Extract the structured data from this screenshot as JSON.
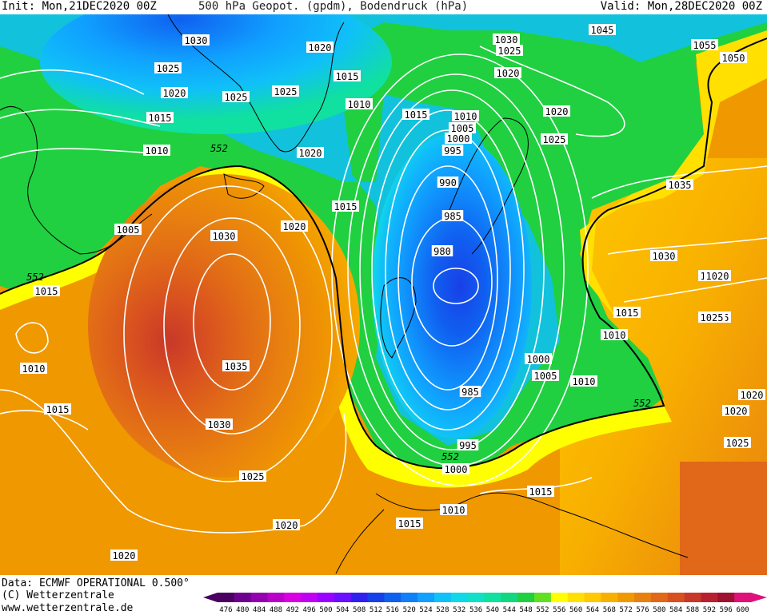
{
  "header": {
    "init": "Init: Mon,21DEC2020 00Z",
    "title": "500 hPa Geopot. (gpdm), Bodendruck (hPa)",
    "valid": "Valid: Mon,28DEC2020 00Z"
  },
  "footer": {
    "data": "Data: ECMWF OPERATIONAL 0.500°",
    "copyright": "(C) Wetterzentrale",
    "website": "www.wetterzentrale.de"
  },
  "scale": {
    "values": [
      "476",
      "480",
      "484",
      "488",
      "492",
      "496",
      "500",
      "504",
      "508",
      "512",
      "516",
      "520",
      "524",
      "528",
      "532",
      "536",
      "540",
      "544",
      "548",
      "552",
      "556",
      "560",
      "564",
      "568",
      "572",
      "576",
      "580",
      "584",
      "588",
      "592",
      "596",
      "600"
    ],
    "colors": [
      "#4a0060",
      "#6e0090",
      "#9400b0",
      "#b800c8",
      "#d800e0",
      "#c000f0",
      "#9a00ff",
      "#6a10ff",
      "#3020f0",
      "#1840e8",
      "#1060f0",
      "#1080f8",
      "#10a0ff",
      "#10c0f8",
      "#10d8e8",
      "#10e0c8",
      "#10e0a0",
      "#10d880",
      "#20d040",
      "#60e020",
      "#ffff00",
      "#ffe000",
      "#ffc800",
      "#f8b000",
      "#f09800",
      "#e88010",
      "#e06818",
      "#d85020",
      "#c83828",
      "#b82030",
      "#a01030",
      "#e0107a"
    ]
  },
  "pressure_labels": [
    {
      "text": "1030"
    },
    {
      "text": "1025"
    },
    {
      "text": "1020"
    },
    {
      "text": "1015"
    },
    {
      "text": "1010"
    },
    {
      "text": "1005"
    },
    {
      "text": "1015"
    },
    {
      "text": "1010"
    },
    {
      "text": "1015"
    },
    {
      "text": "1020"
    },
    {
      "text": "1025"
    },
    {
      "text": "1025"
    },
    {
      "text": "1020"
    },
    {
      "text": "1015"
    },
    {
      "text": "1010"
    },
    {
      "text": "1020"
    },
    {
      "text": "1015"
    },
    {
      "text": "1020"
    },
    {
      "text": "1025"
    },
    {
      "text": "1030"
    },
    {
      "text": "1035"
    },
    {
      "text": "1030"
    },
    {
      "text": "1025"
    },
    {
      "text": "1020"
    },
    {
      "text": "1020"
    },
    {
      "text": "1015"
    },
    {
      "text": "1010"
    },
    {
      "text": "1005"
    },
    {
      "text": "1000"
    },
    {
      "text": "995"
    },
    {
      "text": "990"
    },
    {
      "text": "985"
    },
    {
      "text": "980"
    },
    {
      "text": "985"
    },
    {
      "text": "995"
    },
    {
      "text": "1000"
    },
    {
      "text": "1010"
    },
    {
      "text": "1015"
    },
    {
      "text": "1015"
    },
    {
      "text": "1000"
    },
    {
      "text": "1005"
    },
    {
      "text": "1010"
    },
    {
      "text": "1010"
    },
    {
      "text": "1015"
    },
    {
      "text": "1020"
    },
    {
      "text": "1025"
    },
    {
      "text": "1030"
    },
    {
      "text": "1035"
    },
    {
      "text": "1020"
    },
    {
      "text": "1025"
    },
    {
      "text": "1020"
    },
    {
      "text": "1045"
    },
    {
      "text": "1030"
    },
    {
      "text": "1025"
    },
    {
      "text": "1020"
    },
    {
      "text": "1020"
    },
    {
      "text": "1025"
    },
    {
      "text": "1055"
    },
    {
      "text": "1050"
    },
    {
      "text": "1030"
    },
    {
      "text": "1020"
    },
    {
      "text": "1015"
    },
    {
      "text": "1010"
    }
  ],
  "contour_labels": [
    {
      "text": "552"
    },
    {
      "text": "552"
    },
    {
      "text": "552"
    },
    {
      "text": "552"
    }
  ]
}
